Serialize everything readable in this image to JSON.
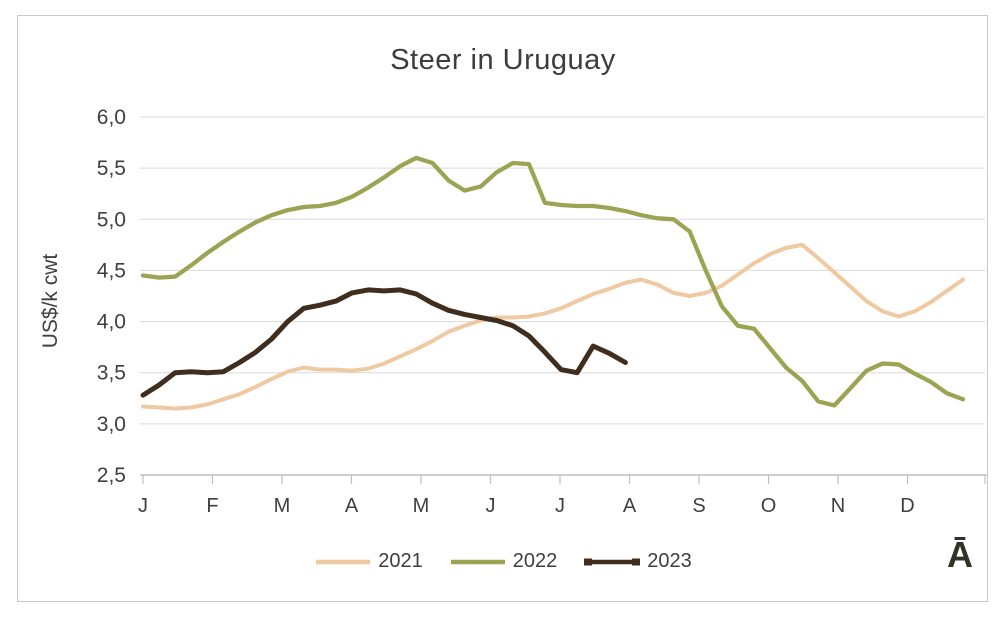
{
  "chart": {
    "title": "Steer in Uruguay",
    "watermark": "Ā"
  },
  "chart_data": {
    "type": "line",
    "title": "Steer in Uruguay",
    "xlabel": "",
    "ylabel": "US$/k cwt",
    "x_unit": "weekly (52 weeks per year)",
    "x_month_labels": [
      "J",
      "F",
      "M",
      "A",
      "M",
      "J",
      "J",
      "A",
      "S",
      "O",
      "N",
      "D"
    ],
    "y_tick_labels": [
      "2,5",
      "3,0",
      "3,5",
      "4,0",
      "4,5",
      "5,0",
      "5,5",
      "6,0"
    ],
    "y_ticks": [
      2.5,
      3.0,
      3.5,
      4.0,
      4.5,
      5.0,
      5.5,
      6.0
    ],
    "ylim": [
      2.5,
      6.0
    ],
    "grid": "horizontal",
    "legend_position": "bottom",
    "colors": {
      "grid": "#d9d9d9",
      "axis": "#bfbfbf",
      "text": "#404040"
    },
    "series": [
      {
        "name": "2021",
        "color": "#eec9a1",
        "swatch": "line",
        "values": [
          3.17,
          3.16,
          3.15,
          3.16,
          3.19,
          3.24,
          3.29,
          3.36,
          3.44,
          3.51,
          3.55,
          3.53,
          3.53,
          3.52,
          3.54,
          3.59,
          3.66,
          3.73,
          3.81,
          3.9,
          3.96,
          4.01,
          4.04,
          4.04,
          4.05,
          4.08,
          4.13,
          4.2,
          4.27,
          4.32,
          4.38,
          4.41,
          4.36,
          4.28,
          4.25,
          4.28,
          4.35,
          4.46,
          4.57,
          4.66,
          4.72,
          4.75,
          4.62,
          4.48,
          4.34,
          4.2,
          4.1,
          4.05,
          4.1,
          4.19,
          4.3,
          4.41
        ]
      },
      {
        "name": "2022",
        "color": "#9ca454",
        "swatch": "line",
        "values": [
          4.45,
          4.43,
          4.44,
          4.55,
          4.67,
          4.78,
          4.88,
          4.97,
          5.04,
          5.09,
          5.12,
          5.13,
          5.16,
          5.22,
          5.31,
          5.41,
          5.52,
          5.6,
          5.55,
          5.38,
          5.28,
          5.32,
          5.46,
          5.55,
          5.54,
          5.16,
          5.14,
          5.13,
          5.13,
          5.11,
          5.08,
          5.04,
          5.01,
          5.0,
          4.88,
          4.5,
          4.15,
          3.96,
          3.93,
          3.74,
          3.55,
          3.42,
          3.22,
          3.18,
          3.35,
          3.52,
          3.59,
          3.58,
          3.49,
          3.41,
          3.3,
          3.24
        ]
      },
      {
        "name": "2023",
        "color": "#3f2e1d",
        "swatch": "line-caps",
        "values": [
          3.28,
          3.38,
          3.5,
          3.51,
          3.5,
          3.51,
          3.6,
          3.7,
          3.83,
          4.0,
          4.13,
          4.16,
          4.2,
          4.28,
          4.31,
          4.3,
          4.31,
          4.27,
          4.18,
          4.11,
          4.07,
          4.04,
          4.01,
          3.96,
          3.86,
          3.7,
          3.53,
          3.5,
          3.76,
          3.69,
          3.6
        ]
      }
    ]
  }
}
